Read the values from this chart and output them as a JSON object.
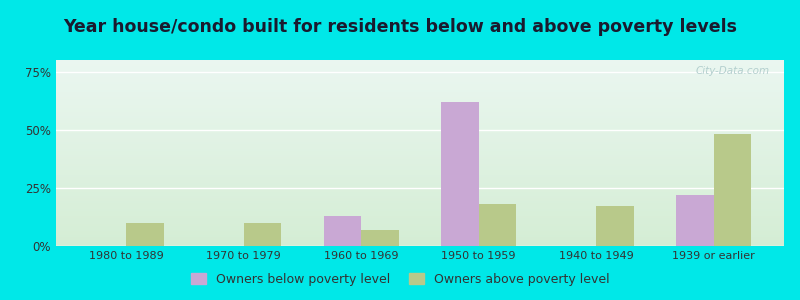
{
  "categories": [
    "1980 to 1989",
    "1970 to 1979",
    "1960 to 1969",
    "1950 to 1959",
    "1940 to 1949",
    "1939 or earlier"
  ],
  "below_poverty": [
    0,
    0,
    13,
    62,
    0,
    22
  ],
  "above_poverty": [
    10,
    10,
    7,
    18,
    17,
    48
  ],
  "below_color": "#c9a8d4",
  "above_color": "#b8c98a",
  "title": "Year house/condo built for residents below and above poverty levels",
  "title_fontsize": 12.5,
  "ylabel_ticks": [
    "0%",
    "25%",
    "50%",
    "75%"
  ],
  "yticks": [
    0,
    25,
    50,
    75
  ],
  "ylim": [
    0,
    80
  ],
  "legend_below": "Owners below poverty level",
  "legend_above": "Owners above poverty level",
  "background_outer": "#00e8e8",
  "background_inner_top": "#eaf6f0",
  "background_inner_bottom": "#d4edd4",
  "watermark": "City-Data.com",
  "bar_width": 0.32
}
